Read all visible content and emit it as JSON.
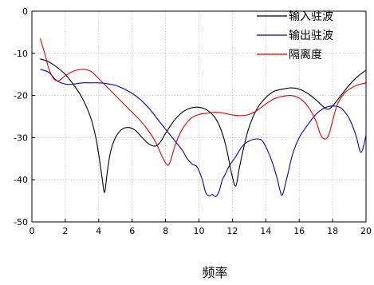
{
  "chart_data": {
    "type": "line",
    "title": "",
    "xlabel": "频率",
    "ylabel": "",
    "xlim": [
      0,
      20
    ],
    "ylim": [
      -50,
      0
    ],
    "xticks": [
      0,
      2,
      4,
      6,
      8,
      10,
      12,
      14,
      16,
      18,
      20
    ],
    "yticks": [
      0,
      -10,
      -20,
      -30,
      -40,
      -50
    ],
    "grid": true,
    "legend_position": "top-right",
    "series": [
      {
        "name": "输入驻波",
        "color": "#000000",
        "x": [
          0.5,
          1.0,
          1.5,
          2.0,
          2.5,
          3.0,
          3.5,
          3.8,
          4.0,
          4.2,
          4.35,
          4.5,
          4.7,
          5.0,
          5.4,
          5.8,
          6.2,
          6.6,
          7.0,
          7.4,
          7.7,
          8.0,
          8.5,
          9.0,
          9.5,
          10.0,
          10.5,
          11.0,
          11.4,
          11.7,
          11.95,
          12.2,
          12.4,
          12.7,
          13.0,
          13.5,
          14.0,
          14.5,
          15.0,
          15.5,
          16.0,
          16.5,
          17.0,
          17.4,
          17.7,
          18.0,
          18.5,
          19.0,
          19.5,
          20.0
        ],
        "values": [
          -11.3,
          -12.0,
          -13.3,
          -15.0,
          -17.5,
          -20.5,
          -25.0,
          -29.5,
          -34.0,
          -39.5,
          -43.0,
          -38.5,
          -33.5,
          -30.0,
          -28.0,
          -27.6,
          -28.3,
          -30.0,
          -31.5,
          -32.0,
          -31.0,
          -29.0,
          -26.0,
          -24.0,
          -23.0,
          -22.8,
          -23.5,
          -25.5,
          -29.0,
          -33.5,
          -38.5,
          -41.5,
          -37.5,
          -32.0,
          -27.5,
          -23.0,
          -20.5,
          -19.0,
          -18.5,
          -18.2,
          -18.5,
          -19.5,
          -21.0,
          -22.5,
          -23.3,
          -22.5,
          -20.0,
          -17.5,
          -15.5,
          -14.0
        ]
      },
      {
        "name": "输出驻波",
        "color": "#0000cc",
        "x": [
          0.5,
          1.0,
          1.5,
          2.0,
          2.5,
          3.0,
          3.5,
          4.0,
          4.5,
          5.0,
          5.5,
          6.0,
          6.5,
          7.0,
          7.5,
          8.0,
          8.5,
          9.0,
          9.3,
          9.6,
          9.9,
          10.2,
          10.4,
          10.6,
          10.8,
          11.0,
          11.2,
          11.4,
          11.6,
          11.8,
          12.2,
          12.6,
          13.0,
          13.5,
          13.8,
          14.1,
          14.4,
          14.7,
          14.85,
          15.0,
          15.3,
          15.6,
          16.0,
          16.5,
          17.0,
          17.5,
          18.0,
          18.5,
          19.0,
          19.4,
          19.7,
          20.0
        ],
        "values": [
          -13.8,
          -14.5,
          -16.5,
          -17.3,
          -17.3,
          -17.0,
          -17.0,
          -17.0,
          -17.2,
          -17.6,
          -18.4,
          -19.5,
          -21.0,
          -23.0,
          -25.5,
          -28.0,
          -30.5,
          -33.0,
          -35.0,
          -36.3,
          -37.0,
          -40.0,
          -43.0,
          -43.8,
          -43.5,
          -44.0,
          -42.8,
          -40.0,
          -38.5,
          -36.8,
          -34.5,
          -32.0,
          -30.8,
          -30.3,
          -30.8,
          -33.0,
          -36.0,
          -40.0,
          -42.5,
          -43.5,
          -39.0,
          -34.0,
          -30.0,
          -27.0,
          -24.5,
          -23.0,
          -22.5,
          -23.0,
          -25.5,
          -29.5,
          -33.5,
          -29.5
        ]
      },
      {
        "name": "隔离度",
        "color": "#dd0000",
        "x": [
          0.5,
          0.8,
          1.0,
          1.3,
          1.6,
          2.0,
          2.5,
          3.0,
          3.5,
          4.0,
          4.5,
          5.0,
          5.5,
          6.0,
          6.5,
          7.0,
          7.4,
          7.8,
          8.1,
          8.3,
          8.6,
          9.0,
          9.5,
          10.0,
          10.5,
          11.0,
          11.5,
          12.0,
          12.5,
          13.0,
          13.5,
          14.0,
          14.5,
          15.0,
          15.5,
          16.0,
          16.5,
          17.0,
          17.3,
          17.6,
          17.8,
          18.0,
          18.3,
          18.7,
          19.0,
          19.5,
          20.0
        ],
        "values": [
          -6.5,
          -10.5,
          -13.5,
          -16.0,
          -16.5,
          -15.3,
          -14.2,
          -13.8,
          -14.2,
          -16.0,
          -18.0,
          -20.0,
          -22.0,
          -24.0,
          -26.0,
          -28.5,
          -31.0,
          -34.5,
          -36.5,
          -35.5,
          -31.5,
          -28.0,
          -25.5,
          -24.5,
          -24.2,
          -24.0,
          -24.2,
          -24.6,
          -24.8,
          -24.5,
          -23.5,
          -22.0,
          -20.8,
          -20.2,
          -20.0,
          -20.6,
          -22.5,
          -26.0,
          -29.5,
          -30.3,
          -29.0,
          -26.0,
          -22.0,
          -19.5,
          -18.5,
          -17.5,
          -17.0
        ]
      }
    ]
  }
}
